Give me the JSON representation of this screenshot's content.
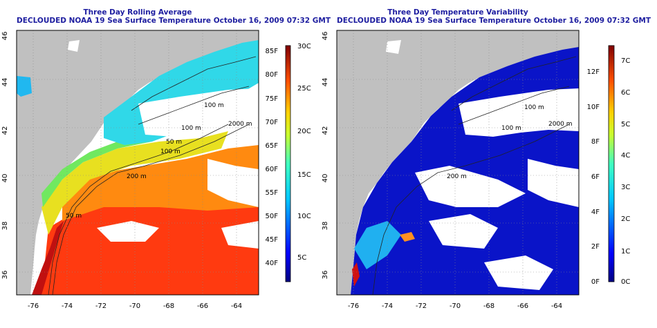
{
  "left_panel": {
    "title_line1": "Three Day Rolling Average",
    "title_line2": "DECLOUDED NOAA 19 Sea Surface Temperature October 16, 2009 07:32 GMT",
    "lat_labels": [
      "36",
      "38",
      "40",
      "42",
      "44",
      "46"
    ],
    "lon_labels": [
      "-76",
      "-74",
      "-72",
      "-70",
      "-68",
      "-66",
      "-64"
    ],
    "contour_labels": [
      "100 m",
      "2000 m",
      "100 m",
      "100 m",
      "50 m",
      "200 m",
      "50 m"
    ],
    "colorbar_f": [
      "40F",
      "45F",
      "50F",
      "55F",
      "60F",
      "65F",
      "70F",
      "75F",
      "80F",
      "85F"
    ],
    "colorbar_c": [
      "5C",
      "10C",
      "15C",
      "20C",
      "25C",
      "30C"
    ]
  },
  "right_panel": {
    "title_line1": "Three Day Temperature Variability",
    "title_line2": "DECLOUDED NOAA 19 Sea Surface Temperature October 16, 2009 07:32 GMT",
    "lat_labels": [
      "36",
      "38",
      "40",
      "42",
      "44",
      "46"
    ],
    "lon_labels": [
      "-76",
      "-74",
      "-72",
      "-70",
      "-68",
      "-66",
      "-64"
    ],
    "contour_labels": [
      "100 m",
      "2000 m",
      "100 m",
      "200 m"
    ],
    "colorbar_f": [
      "0F",
      "2F",
      "4F",
      "6F",
      "8F",
      "10F",
      "12F"
    ],
    "colorbar_c": [
      "0C",
      "1C",
      "2C",
      "3C",
      "4C",
      "5C",
      "6C",
      "7C"
    ]
  },
  "colors": {
    "land": "#c0c0c0",
    "title": "#1e1ea0",
    "variability_base": "#0a14c8"
  }
}
